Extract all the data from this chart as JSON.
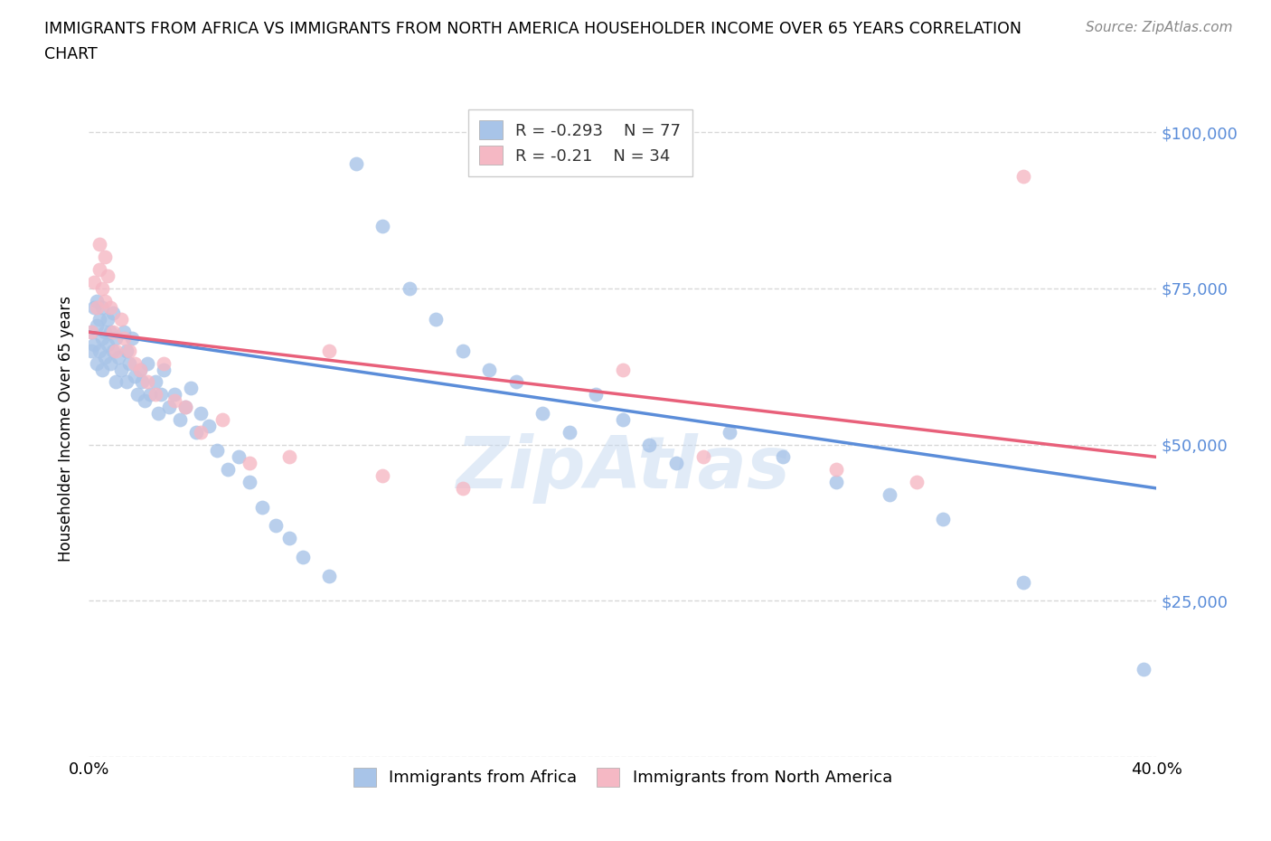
{
  "title_line1": "IMMIGRANTS FROM AFRICA VS IMMIGRANTS FROM NORTH AMERICA HOUSEHOLDER INCOME OVER 65 YEARS CORRELATION",
  "title_line2": "CHART",
  "source": "Source: ZipAtlas.com",
  "ylabel": "Householder Income Over 65 years",
  "xlim": [
    0.0,
    0.4
  ],
  "ylim": [
    0,
    105000
  ],
  "africa_color": "#a8c4e8",
  "na_color": "#f5b8c4",
  "africa_line_color": "#5b8dd9",
  "na_line_color": "#e8607a",
  "R_africa": -0.293,
  "N_africa": 77,
  "R_na": -0.21,
  "N_na": 34,
  "africa_x": [
    0.001,
    0.001,
    0.002,
    0.002,
    0.003,
    0.003,
    0.003,
    0.004,
    0.004,
    0.005,
    0.005,
    0.005,
    0.006,
    0.006,
    0.007,
    0.007,
    0.008,
    0.008,
    0.009,
    0.009,
    0.01,
    0.01,
    0.011,
    0.012,
    0.013,
    0.014,
    0.014,
    0.015,
    0.016,
    0.017,
    0.018,
    0.019,
    0.02,
    0.021,
    0.022,
    0.023,
    0.025,
    0.026,
    0.027,
    0.028,
    0.03,
    0.032,
    0.034,
    0.036,
    0.038,
    0.04,
    0.042,
    0.045,
    0.048,
    0.052,
    0.056,
    0.06,
    0.065,
    0.07,
    0.075,
    0.08,
    0.09,
    0.1,
    0.11,
    0.12,
    0.13,
    0.14,
    0.15,
    0.16,
    0.17,
    0.18,
    0.19,
    0.2,
    0.21,
    0.22,
    0.24,
    0.26,
    0.28,
    0.3,
    0.32,
    0.35,
    0.395
  ],
  "africa_y": [
    65000,
    68000,
    66000,
    72000,
    63000,
    69000,
    73000,
    65000,
    70000,
    67000,
    72000,
    62000,
    68000,
    64000,
    70000,
    66000,
    63000,
    68000,
    65000,
    71000,
    60000,
    67000,
    64000,
    62000,
    68000,
    60000,
    65000,
    63000,
    67000,
    61000,
    58000,
    62000,
    60000,
    57000,
    63000,
    58000,
    60000,
    55000,
    58000,
    62000,
    56000,
    58000,
    54000,
    56000,
    59000,
    52000,
    55000,
    53000,
    49000,
    46000,
    48000,
    44000,
    40000,
    37000,
    35000,
    32000,
    29000,
    95000,
    85000,
    75000,
    70000,
    65000,
    62000,
    60000,
    55000,
    52000,
    58000,
    54000,
    50000,
    47000,
    52000,
    48000,
    44000,
    42000,
    38000,
    28000,
    14000
  ],
  "na_x": [
    0.001,
    0.002,
    0.003,
    0.004,
    0.004,
    0.005,
    0.006,
    0.006,
    0.007,
    0.008,
    0.009,
    0.01,
    0.012,
    0.013,
    0.015,
    0.017,
    0.019,
    0.022,
    0.025,
    0.028,
    0.032,
    0.036,
    0.042,
    0.05,
    0.06,
    0.075,
    0.09,
    0.11,
    0.14,
    0.2,
    0.23,
    0.28,
    0.31,
    0.35
  ],
  "na_y": [
    68000,
    76000,
    72000,
    78000,
    82000,
    75000,
    73000,
    80000,
    77000,
    72000,
    68000,
    65000,
    70000,
    67000,
    65000,
    63000,
    62000,
    60000,
    58000,
    63000,
    57000,
    56000,
    52000,
    54000,
    47000,
    48000,
    65000,
    45000,
    43000,
    62000,
    48000,
    46000,
    44000,
    93000
  ],
  "yticks": [
    0,
    25000,
    50000,
    75000,
    100000
  ],
  "ytick_labels_right": [
    "",
    "$25,000",
    "$50,000",
    "$75,000",
    "$100,000"
  ],
  "xticks": [
    0.0,
    0.05,
    0.1,
    0.15,
    0.2,
    0.25,
    0.3,
    0.35,
    0.4
  ],
  "grid_color": "#d8d8d8",
  "background_color": "#ffffff",
  "watermark": "ZipAtlas",
  "watermark_color": "#c5d9f0",
  "right_axis_color": "#5b8dd9"
}
